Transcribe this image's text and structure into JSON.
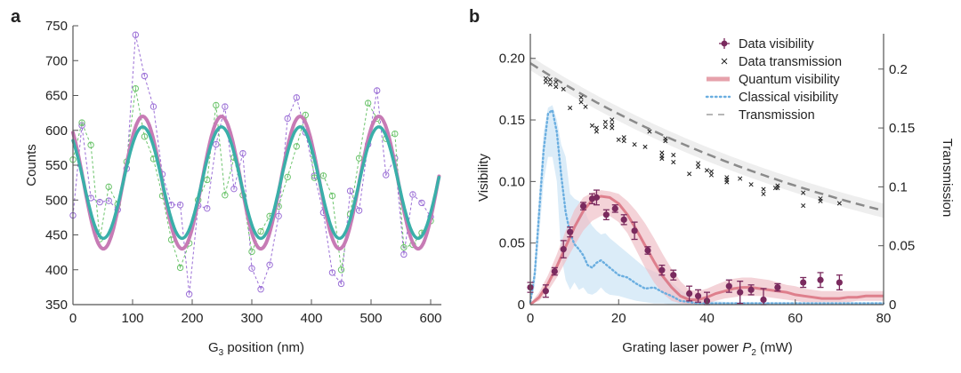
{
  "chart_data": [
    {
      "panel_label": "a",
      "type": "line",
      "xlabel": "G3 position (nm)",
      "xlabel_main": "G",
      "xlabel_sub": "3",
      "xlabel_rest": " position (nm)",
      "ylabel": "Counts",
      "xlim": [
        0,
        615
      ],
      "ylim": [
        350,
        750
      ],
      "xticks": [
        0,
        100,
        200,
        300,
        400,
        500,
        600
      ],
      "yticks": [
        350,
        400,
        450,
        500,
        550,
        600,
        650,
        700,
        750
      ],
      "grid": false,
      "colors": {
        "fit_purple": "#c77bb5",
        "fit_teal": "#3aafa9",
        "data_purple": "#9b6fd6",
        "data_green": "#6cc46c"
      },
      "fits": [
        {
          "name": "Fit (purple)",
          "mean": 525,
          "amplitude": 95,
          "period_nm": 132,
          "peak_x": 117,
          "x_range": [
            0,
            615
          ],
          "color_key": "fit_purple"
        },
        {
          "name": "Fit (teal)",
          "mean": 525,
          "amplitude": 80,
          "period_nm": 132,
          "peak_x": 117,
          "x_range": [
            0,
            615
          ],
          "color_key": "fit_teal"
        }
      ],
      "series": [
        {
          "name": "Data (purple)",
          "color_key": "data_purple",
          "x": [
            0,
            15,
            30,
            45,
            60,
            75,
            90,
            105,
            120,
            135,
            150,
            165,
            180,
            195,
            210,
            225,
            240,
            255,
            270,
            285,
            300,
            315,
            330,
            345,
            360,
            375,
            390,
            405,
            420,
            435,
            450,
            465,
            480,
            495,
            510,
            525,
            540,
            555,
            570,
            585,
            600
          ],
          "y": [
            478,
            607,
            503,
            497,
            499,
            486,
            545,
            737,
            678,
            634,
            537,
            493,
            493,
            365,
            492,
            488,
            580,
            634,
            516,
            567,
            402,
            372,
            407,
            477,
            617,
            647,
            597,
            535,
            482,
            396,
            380,
            513,
            485,
            580,
            657,
            536,
            560,
            422,
            508,
            496,
            476
          ]
        },
        {
          "name": "Data (green)",
          "color_key": "data_green",
          "x": [
            0,
            15,
            30,
            45,
            60,
            75,
            90,
            105,
            120,
            135,
            150,
            165,
            180,
            195,
            210,
            225,
            240,
            255,
            270,
            285,
            300,
            315,
            330,
            345,
            360,
            375,
            390,
            405,
            420,
            435,
            450,
            465,
            480,
            495,
            510,
            525,
            540,
            555,
            570,
            585,
            600
          ],
          "y": [
            558,
            611,
            579,
            444,
            519,
            494,
            555,
            660,
            591,
            559,
            506,
            443,
            403,
            438,
            500,
            529,
            636,
            507,
            561,
            507,
            426,
            455,
            477,
            491,
            533,
            577,
            622,
            532,
            535,
            506,
            400,
            480,
            560,
            639,
            617,
            588,
            595,
            432,
            436,
            453,
            470
          ]
        }
      ]
    },
    {
      "panel_label": "b",
      "type": "line",
      "xlabel": "Grating laser power P2 (mW)",
      "xlabel_main": "Grating laser power ",
      "xlabel_italic": "P",
      "xlabel_sub": "2",
      "xlabel_rest": " (mW)",
      "ylabel": "Visibility",
      "y2label": "Transmission",
      "xlim": [
        0,
        80
      ],
      "ylim": [
        0,
        0.22
      ],
      "y2lim": [
        0,
        0.23
      ],
      "xticks": [
        0,
        20,
        40,
        60,
        80
      ],
      "yticks": [
        0,
        0.05,
        0.1,
        0.15,
        0.2
      ],
      "ytick_labels": [
        "0",
        "0.05",
        "0.10",
        "0.15",
        "0.20"
      ],
      "y2ticks": [
        0,
        0.05,
        0.1,
        0.15,
        0.2
      ],
      "y2tick_labels": [
        "0",
        "0.05",
        "0.1",
        "0.15",
        "0.2"
      ],
      "grid": false,
      "legend_position": "top-right",
      "colors": {
        "data_visibility": "#7a2a5e",
        "data_transmission": "#222222",
        "quantum": "#d9707f",
        "quantum_band": "#f0c0c8",
        "classical": "#6aaee0",
        "classical_band": "#cfe6f5",
        "transmission": "#8a8a8a",
        "transmission_band": "#ececec"
      },
      "legend": [
        {
          "label": "Data visibility",
          "key": "data_visibility",
          "style": "errorbar"
        },
        {
          "label": "Data transmission",
          "key": "data_transmission",
          "style": "cross"
        },
        {
          "label": "Quantum visibility",
          "key": "quantum",
          "style": "thick"
        },
        {
          "label": "Classical visibility",
          "key": "classical",
          "style": "dotted"
        },
        {
          "label": "Transmission",
          "key": "transmission",
          "style": "dashed"
        }
      ],
      "data_visibility": {
        "x": [
          0,
          3.5,
          5.5,
          7.5,
          9,
          12,
          14,
          15,
          17.2,
          19.2,
          21.2,
          23.6,
          26.6,
          29.8,
          32.4,
          36,
          38,
          40,
          45,
          47.5,
          50,
          52.8,
          56,
          61.8,
          65.7,
          70
        ],
        "y": [
          0.014,
          0.011,
          0.027,
          0.045,
          0.059,
          0.08,
          0.086,
          0.087,
          0.073,
          0.078,
          0.069,
          0.06,
          0.044,
          0.028,
          0.024,
          0.009,
          0.007,
          0.003,
          0.015,
          0.01,
          0.012,
          0.004,
          0.014,
          0.018,
          0.02,
          0.018
        ],
        "yerr": [
          0.004,
          0.005,
          0.003,
          0.007,
          0.004,
          0.003,
          0.004,
          0.006,
          0.004,
          0.003,
          0.004,
          0.007,
          0.003,
          0.004,
          0.004,
          0.006,
          0.005,
          0.007,
          0.005,
          0.009,
          0.004,
          0.009,
          0.003,
          0.004,
          0.006,
          0.006
        ]
      },
      "data_transmission": {
        "x": [
          3.5,
          3.5,
          4.5,
          4.5,
          5.8,
          5.8,
          7.5,
          9,
          11.5,
          11.5,
          12.5,
          14,
          15,
          15,
          17,
          17,
          18.5,
          18.5,
          18.5,
          20,
          21.2,
          21.2,
          23.6,
          26,
          27,
          29.8,
          29.8,
          29.8,
          30.6,
          30.6,
          32.4,
          32.4,
          36,
          38,
          38,
          40,
          41,
          41,
          44.5,
          44.5,
          44.5,
          47.5,
          50,
          52.8,
          52.8,
          55.5,
          56,
          56,
          61.8,
          61.8,
          65.7,
          65.7,
          70
        ],
        "y": [
          0.192,
          0.189,
          0.191,
          0.187,
          0.189,
          0.185,
          0.183,
          0.167,
          0.176,
          0.172,
          0.168,
          0.152,
          0.15,
          0.147,
          0.155,
          0.151,
          0.157,
          0.153,
          0.15,
          0.14,
          0.142,
          0.139,
          0.136,
          0.134,
          0.147,
          0.129,
          0.126,
          0.124,
          0.141,
          0.139,
          0.127,
          0.121,
          0.111,
          0.12,
          0.117,
          0.114,
          0.113,
          0.11,
          0.108,
          0.106,
          0.104,
          0.107,
          0.102,
          0.098,
          0.094,
          0.099,
          0.101,
          0.099,
          0.095,
          0.084,
          0.09,
          0.088,
          0.086
        ]
      },
      "transmission_curve": {
        "T0": 0.205,
        "decay_per_mW": 0.0118
      },
      "quantum_visibility": {
        "x": [
          0,
          2,
          4,
          6,
          8,
          10,
          12,
          14,
          16,
          18,
          20,
          22,
          24,
          26,
          28,
          30,
          32,
          34,
          36,
          38,
          40,
          42,
          44,
          46,
          48,
          50,
          52,
          54,
          56,
          58,
          60,
          62,
          64,
          66,
          68,
          70,
          72,
          74,
          76,
          78,
          80
        ],
        "y": [
          0,
          0.006,
          0.017,
          0.031,
          0.047,
          0.063,
          0.076,
          0.085,
          0.088,
          0.087,
          0.082,
          0.073,
          0.061,
          0.048,
          0.035,
          0.023,
          0.014,
          0.007,
          0.004,
          0.004,
          0.006,
          0.009,
          0.011,
          0.013,
          0.014,
          0.014,
          0.013,
          0.012,
          0.011,
          0.01,
          0.008,
          0.007,
          0.006,
          0.005,
          0.005,
          0.005,
          0.006,
          0.006,
          0.007,
          0.007,
          0.007
        ],
        "band_lower": [
          0,
          0.003,
          0.011,
          0.022,
          0.035,
          0.048,
          0.06,
          0.068,
          0.072,
          0.072,
          0.067,
          0.058,
          0.044,
          0.03,
          0.018,
          0.009,
          0.003,
          0.001,
          0,
          0,
          0.001,
          0.003,
          0.005,
          0.006,
          0.007,
          0.007,
          0.007,
          0.006,
          0.005,
          0.004,
          0.003,
          0.002,
          0.002,
          0.002,
          0.002,
          0.002,
          0.002,
          0.003,
          0.003,
          0.003,
          0.003
        ],
        "band_upper": [
          0.001,
          0.01,
          0.024,
          0.041,
          0.06,
          0.077,
          0.087,
          0.091,
          0.093,
          0.092,
          0.09,
          0.084,
          0.076,
          0.066,
          0.054,
          0.041,
          0.029,
          0.019,
          0.012,
          0.011,
          0.013,
          0.016,
          0.019,
          0.021,
          0.022,
          0.022,
          0.021,
          0.02,
          0.018,
          0.016,
          0.015,
          0.013,
          0.012,
          0.011,
          0.011,
          0.011,
          0.011,
          0.011,
          0.011,
          0.011,
          0.011
        ]
      },
      "classical_visibility": {
        "x": [
          0,
          1,
          2,
          3,
          4,
          5,
          6,
          7,
          8,
          9,
          10,
          11,
          12,
          13,
          14,
          15,
          16,
          17,
          18,
          20,
          22,
          24,
          26,
          28,
          30,
          32,
          34,
          36,
          38,
          40,
          45,
          50,
          60,
          70,
          80
        ],
        "y": [
          0.002,
          0.025,
          0.075,
          0.125,
          0.155,
          0.158,
          0.14,
          0.105,
          0.075,
          0.058,
          0.049,
          0.045,
          0.04,
          0.032,
          0.03,
          0.034,
          0.036,
          0.033,
          0.03,
          0.024,
          0.022,
          0.017,
          0.013,
          0.014,
          0.01,
          0.007,
          0.003,
          0.002,
          0.001,
          0.001,
          0.001,
          0.001,
          0.001,
          0.001,
          0.001
        ],
        "band_lower": [
          0,
          0.015,
          0.055,
          0.1,
          0.12,
          0.12,
          0.1,
          0.04,
          0.02,
          0.012,
          0.018,
          0.012,
          0.014,
          0.009,
          0.008,
          0.01,
          0.014,
          0.01,
          0.008,
          0.007,
          0.005,
          0.003,
          0.002,
          0.001,
          0.001,
          0,
          0,
          0,
          0,
          0,
          0,
          0,
          0,
          0,
          0
        ],
        "band_upper": [
          0.003,
          0.035,
          0.09,
          0.14,
          0.16,
          0.162,
          0.15,
          0.13,
          0.12,
          0.09,
          0.086,
          0.084,
          0.08,
          0.07,
          0.064,
          0.06,
          0.057,
          0.058,
          0.054,
          0.048,
          0.042,
          0.036,
          0.03,
          0.027,
          0.024,
          0.018,
          0.012,
          0.007,
          0.004,
          0.003,
          0.002,
          0.002,
          0.002,
          0.002,
          0.002
        ]
      }
    }
  ]
}
